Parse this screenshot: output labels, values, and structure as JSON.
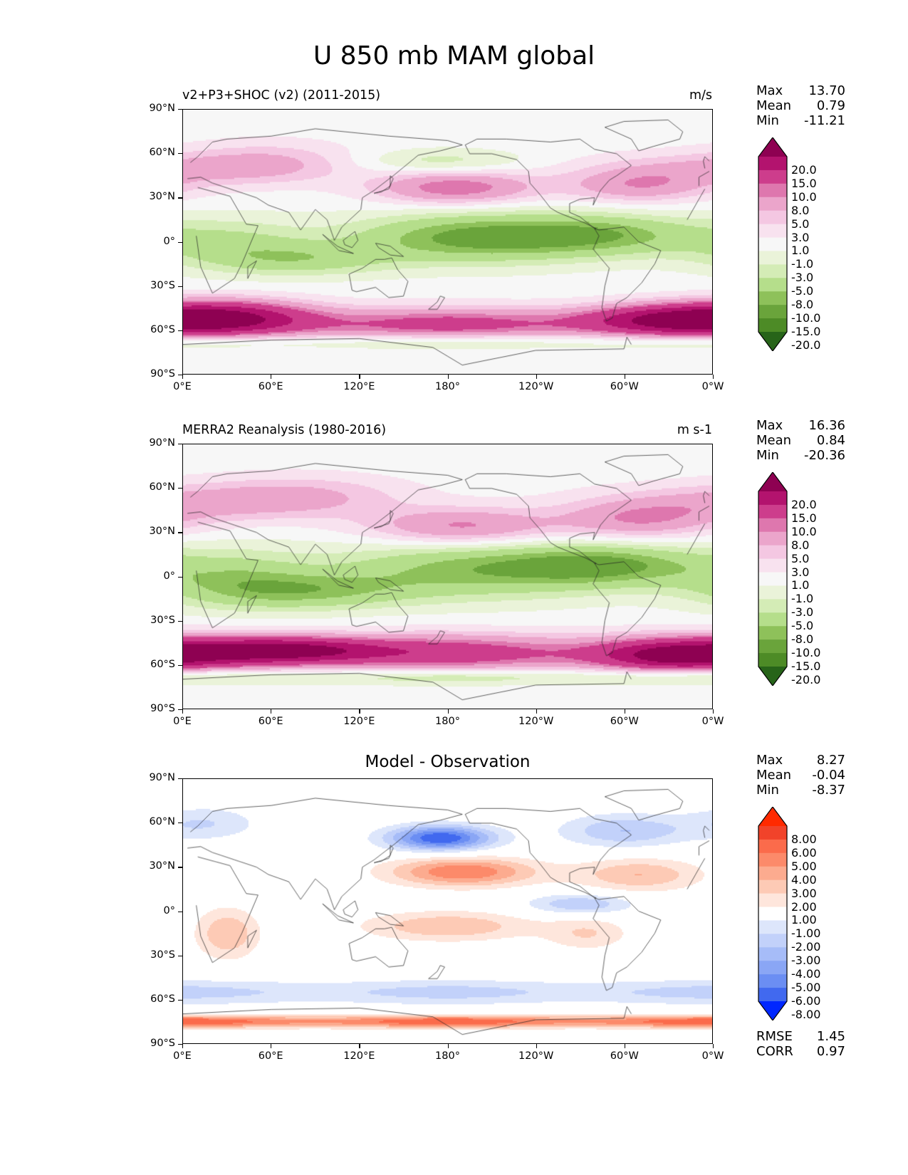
{
  "figure": {
    "title": "U 850 mb MAM global"
  },
  "chart_data": [
    {
      "type": "heatmap",
      "title": "v2+P3+SHOC (v2) (2011-2015)",
      "units": "m/s",
      "projection": "plate carree",
      "x_ticks": [
        "0°E",
        "60°E",
        "120°E",
        "180°",
        "120°W",
        "60°W",
        "0°W"
      ],
      "y_ticks": [
        "90°N",
        "60°N",
        "30°N",
        "0°",
        "30°S",
        "60°S",
        "90°S"
      ],
      "xlim": [
        0,
        360
      ],
      "ylim": [
        -90,
        90
      ],
      "stats": {
        "max_label": "Max",
        "max": "13.70",
        "mean_label": "Mean",
        "mean": "0.79",
        "min_label": "Min",
        "min": "-11.21"
      },
      "colorbar": {
        "levels": [
          "20.0",
          "15.0",
          "10.0",
          "8.0",
          "5.0",
          "3.0",
          "1.0",
          "-1.0",
          "-3.0",
          "-5.0",
          "-8.0",
          "-10.0",
          "-15.0",
          "-20.0"
        ],
        "colors": [
          "#8e0152",
          "#b3136e",
          "#cd3d8c",
          "#de77ae",
          "#eba5cb",
          "#f4c7e2",
          "#f8e2ef",
          "#f7f7f7",
          "#eaf3d9",
          "#d4ecb6",
          "#b5de8b",
          "#8ec15a",
          "#6aa43b",
          "#4d8b26",
          "#276419"
        ],
        "extend": "both"
      },
      "fields": [
        {
          "lat": -56,
          "lon": 180,
          "sx": 190,
          "sy": 8,
          "v": 12,
          "shape": "band"
        },
        {
          "lat": -50,
          "lon": 30,
          "sx": 40,
          "sy": 8,
          "v": 13,
          "shape": "blob"
        },
        {
          "lat": -52,
          "lon": 330,
          "sx": 40,
          "sy": 7,
          "v": 12,
          "shape": "blob"
        },
        {
          "lat": 37,
          "lon": 185,
          "sx": 38,
          "sy": 8,
          "v": 10,
          "shape": "blob"
        },
        {
          "lat": 38,
          "lon": 310,
          "sx": 35,
          "sy": 8,
          "v": 7,
          "shape": "blob"
        },
        {
          "lat": 50,
          "lon": 0,
          "sx": 60,
          "sy": 8,
          "v": 5,
          "shape": "blob"
        },
        {
          "lat": 55,
          "lon": 60,
          "sx": 40,
          "sy": 10,
          "v": 4,
          "shape": "blob"
        },
        {
          "lat": 3,
          "lon": 200,
          "sx": 60,
          "sy": 12,
          "v": -11,
          "shape": "blob"
        },
        {
          "lat": 5,
          "lon": 290,
          "sx": 45,
          "sy": 10,
          "v": -7,
          "shape": "blob"
        },
        {
          "lat": -12,
          "lon": 80,
          "sx": 45,
          "sy": 8,
          "v": -6,
          "shape": "blob"
        },
        {
          "lat": 0,
          "lon": 30,
          "sx": 40,
          "sy": 12,
          "v": -5,
          "shape": "blob"
        },
        {
          "lat": -68,
          "lon": 180,
          "sx": 190,
          "sy": 4,
          "v": -5,
          "shape": "band"
        },
        {
          "lat": 55,
          "lon": 175,
          "sx": 40,
          "sy": 6,
          "v": -4,
          "shape": "blob"
        }
      ]
    },
    {
      "type": "heatmap",
      "title": "MERRA2 Reanalysis (1980-2016)",
      "units": "m s-1",
      "projection": "plate carree",
      "x_ticks": [
        "0°E",
        "60°E",
        "120°E",
        "180°",
        "120°W",
        "60°W",
        "0°W"
      ],
      "y_ticks": [
        "90°N",
        "60°N",
        "30°N",
        "0°",
        "30°S",
        "60°S",
        "90°S"
      ],
      "xlim": [
        0,
        360
      ],
      "ylim": [
        -90,
        90
      ],
      "stats": {
        "max_label": "Max",
        "max": "16.36",
        "mean_label": "Mean",
        "mean": "0.84",
        "min_label": "Min",
        "min": "-20.36"
      },
      "colorbar": {
        "levels": [
          "20.0",
          "15.0",
          "10.0",
          "8.0",
          "5.0",
          "3.0",
          "1.0",
          "-1.0",
          "-3.0",
          "-5.0",
          "-8.0",
          "-10.0",
          "-15.0",
          "-20.0"
        ],
        "colors": [
          "#8e0152",
          "#b3136e",
          "#cd3d8c",
          "#de77ae",
          "#eba5cb",
          "#f4c7e2",
          "#f8e2ef",
          "#f7f7f7",
          "#eaf3d9",
          "#d4ecb6",
          "#b5de8b",
          "#8ec15a",
          "#6aa43b",
          "#4d8b26",
          "#276419"
        ],
        "extend": "both"
      },
      "fields": [
        {
          "lat": -52,
          "lon": 180,
          "sx": 190,
          "sy": 9,
          "v": 13,
          "shape": "band"
        },
        {
          "lat": -50,
          "lon": 70,
          "sx": 45,
          "sy": 6,
          "v": 16,
          "shape": "blob"
        },
        {
          "lat": -54,
          "lon": 335,
          "sx": 35,
          "sy": 7,
          "v": 13,
          "shape": "blob"
        },
        {
          "lat": 34,
          "lon": 190,
          "sx": 45,
          "sy": 9,
          "v": 9,
          "shape": "blob"
        },
        {
          "lat": 38,
          "lon": 310,
          "sx": 38,
          "sy": 9,
          "v": 7,
          "shape": "blob"
        },
        {
          "lat": 50,
          "lon": 0,
          "sx": 60,
          "sy": 9,
          "v": 5,
          "shape": "blob"
        },
        {
          "lat": 55,
          "lon": 80,
          "sx": 50,
          "sy": 10,
          "v": 5,
          "shape": "blob"
        },
        {
          "lat": 5,
          "lon": 200,
          "sx": 70,
          "sy": 14,
          "v": -9,
          "shape": "blob"
        },
        {
          "lat": 8,
          "lon": 290,
          "sx": 45,
          "sy": 10,
          "v": -8,
          "shape": "blob"
        },
        {
          "lat": -10,
          "lon": 85,
          "sx": 50,
          "sy": 9,
          "v": -7,
          "shape": "blob"
        },
        {
          "lat": 0,
          "lon": 30,
          "sx": 40,
          "sy": 14,
          "v": -6,
          "shape": "blob"
        },
        {
          "lat": -68,
          "lon": 180,
          "sx": 190,
          "sy": 4,
          "v": -6,
          "shape": "band"
        }
      ]
    },
    {
      "type": "heatmap",
      "title": "Model - Observation",
      "projection": "plate carree",
      "x_ticks": [
        "0°E",
        "60°E",
        "120°E",
        "180°",
        "120°W",
        "60°W",
        "0°W"
      ],
      "y_ticks": [
        "90°N",
        "60°N",
        "30°N",
        "0°",
        "30°S",
        "60°S",
        "90°S"
      ],
      "xlim": [
        0,
        360
      ],
      "ylim": [
        -90,
        90
      ],
      "stats": {
        "max_label": "Max",
        "max": "8.27",
        "mean_label": "Mean",
        "mean": "-0.04",
        "min_label": "Min",
        "min": "-8.37"
      },
      "metrics": {
        "rmse_label": "RMSE",
        "rmse": "1.45",
        "corr_label": "CORR",
        "corr": "0.97"
      },
      "colorbar": {
        "levels": [
          "8.00",
          "6.00",
          "5.00",
          "4.00",
          "3.00",
          "2.00",
          "1.00",
          "-1.00",
          "-2.00",
          "-3.00",
          "-4.00",
          "-5.00",
          "-6.00",
          "-8.00"
        ],
        "colors": [
          "#ff2a00",
          "#f1432a",
          "#fb6b4b",
          "#fc8a6a",
          "#fcab8f",
          "#fdcab5",
          "#fee6dc",
          "#ffffff",
          "#dde6fb",
          "#c2d1fa",
          "#a6bcf8",
          "#8aa6f5",
          "#6b8ef3",
          "#4169ef",
          "#0027ff"
        ],
        "extend": "both"
      },
      "fields": [
        {
          "lat": 50,
          "lon": 175,
          "sx": 25,
          "sy": 6,
          "v": -7,
          "shape": "blob"
        },
        {
          "lat": 27,
          "lon": 190,
          "sx": 35,
          "sy": 7,
          "v": 5,
          "shape": "blob"
        },
        {
          "lat": -10,
          "lon": 180,
          "sx": 40,
          "sy": 7,
          "v": 3,
          "shape": "blob"
        },
        {
          "lat": -55,
          "lon": 180,
          "sx": 190,
          "sy": 6,
          "v": -2.5,
          "shape": "band"
        },
        {
          "lat": -75,
          "lon": 180,
          "sx": 190,
          "sy": 3,
          "v": 6,
          "shape": "band"
        },
        {
          "lat": -15,
          "lon": 30,
          "sx": 15,
          "sy": 12,
          "v": 3,
          "shape": "blob"
        },
        {
          "lat": 25,
          "lon": 310,
          "sx": 30,
          "sy": 8,
          "v": 3,
          "shape": "blob"
        },
        {
          "lat": 55,
          "lon": 300,
          "sx": 30,
          "sy": 8,
          "v": -3,
          "shape": "blob"
        },
        {
          "lat": 60,
          "lon": 15,
          "sx": 25,
          "sy": 8,
          "v": -2,
          "shape": "blob"
        },
        {
          "lat": 5,
          "lon": 270,
          "sx": 25,
          "sy": 5,
          "v": -3,
          "shape": "blob"
        },
        {
          "lat": -15,
          "lon": 275,
          "sx": 20,
          "sy": 8,
          "v": 2,
          "shape": "blob"
        }
      ]
    }
  ]
}
